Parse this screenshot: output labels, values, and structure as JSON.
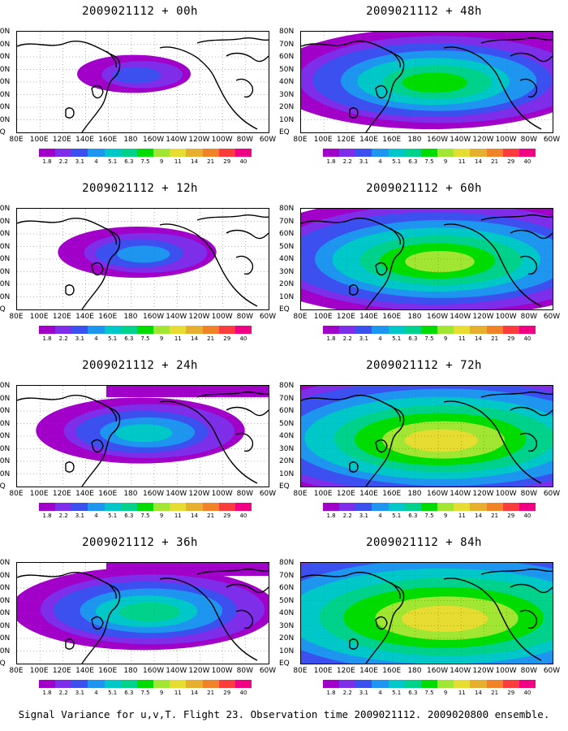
{
  "caption": "Signal Variance for u,v,T. Flight 23. Observation time 2009021112. 2009020800 ensemble.",
  "colorbar": {
    "labels": [
      "1.8",
      "2.2",
      "3.1",
      "4",
      "5.1",
      "6.3",
      "7.5",
      "9",
      "11",
      "14",
      "21",
      "29",
      "40"
    ],
    "colors": [
      "#a000c8",
      "#7e2de8",
      "#3c50f0",
      "#1e96f0",
      "#00c8c8",
      "#00d28c",
      "#00dc00",
      "#a0e632",
      "#e6dc32",
      "#e6af2d",
      "#f08228",
      "#fa3c3c",
      "#f00082"
    ]
  },
  "lat_labels": [
    "80N",
    "70N",
    "60N",
    "50N",
    "40N",
    "30N",
    "20N",
    "10N",
    "EQ"
  ],
  "lon_labels": [
    "80E",
    "100E",
    "120E",
    "140E",
    "160E",
    "180",
    "160W",
    "140W",
    "120W",
    "100W",
    "80W",
    "60W"
  ],
  "panels": [
    {
      "title": "2009021112 + 00h"
    },
    {
      "title": "2009021112 + 48h"
    },
    {
      "title": "2009021112 + 12h"
    },
    {
      "title": "2009021112 + 60h"
    },
    {
      "title": "2009021112 + 24h"
    },
    {
      "title": "2009021112 + 72h"
    },
    {
      "title": "2009021112 + 36h"
    },
    {
      "title": "2009021112 + 84h"
    }
  ]
}
